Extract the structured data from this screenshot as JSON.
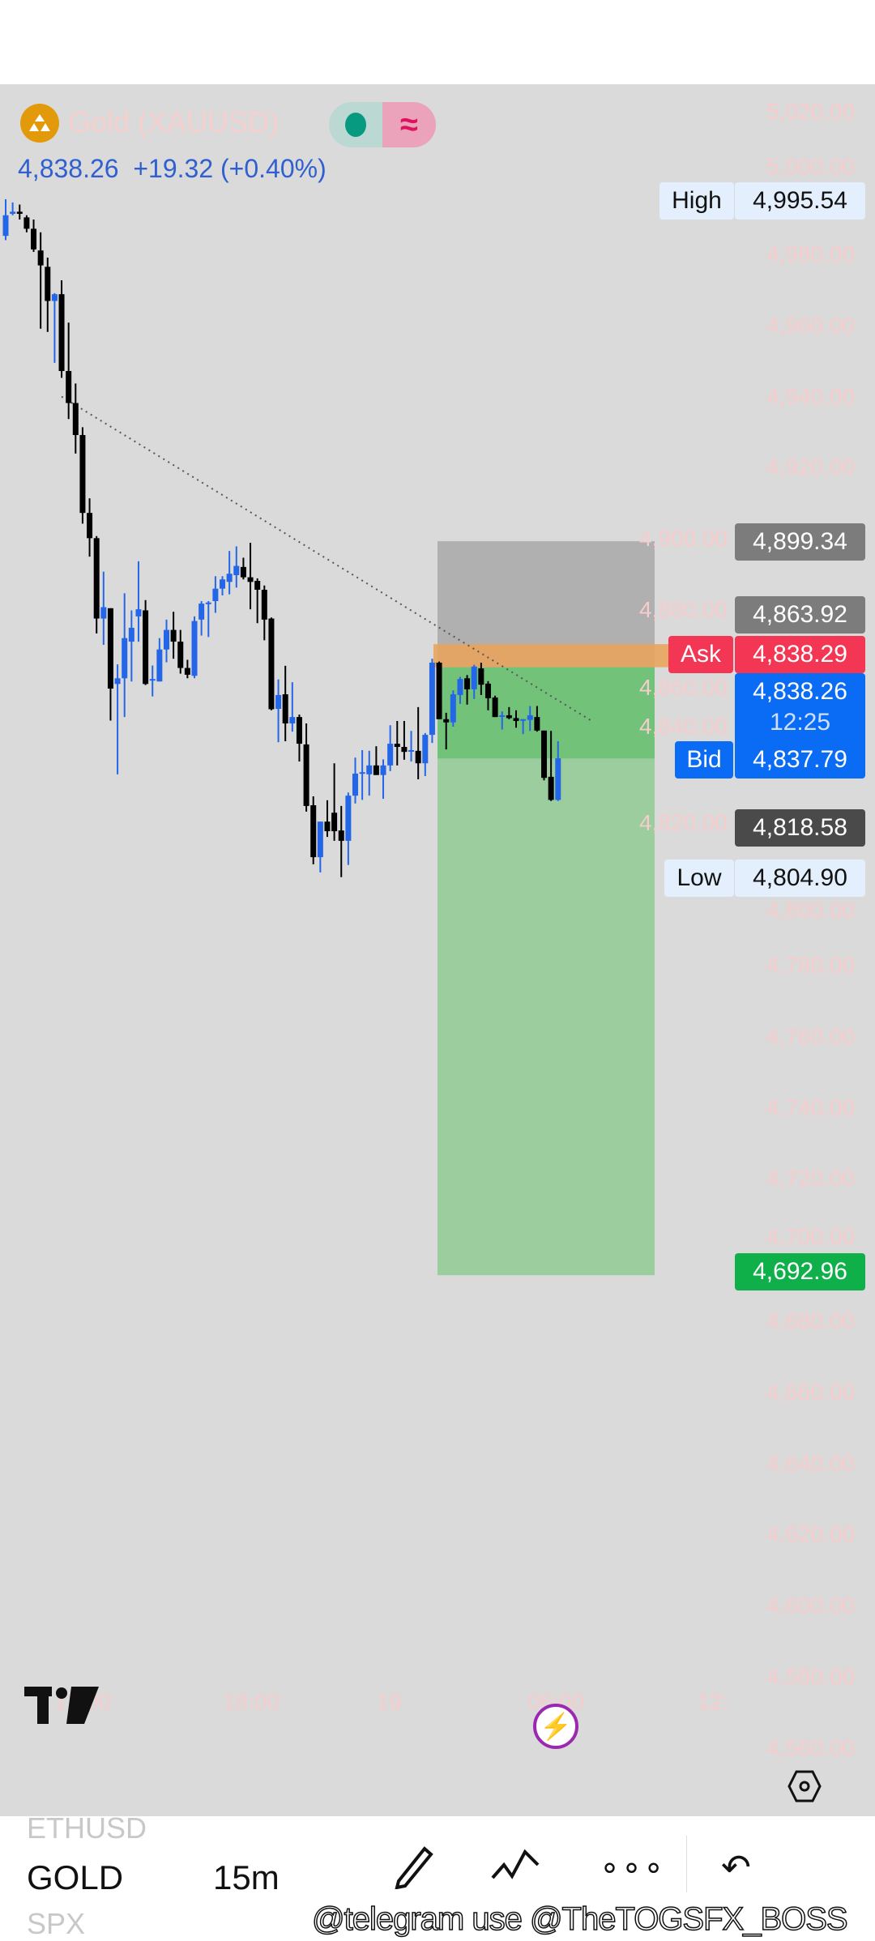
{
  "header": {
    "symbol_title": "Gold (XAUUSD)",
    "last_price": "4,838.26",
    "change": "+19.32 (+0.40%)",
    "market_status_icon": "market-open-dot-icon",
    "wave_icon": "approx-wave-icon",
    "symbol_icon": "gold-bars-icon"
  },
  "price_labels": {
    "high_tag": "High",
    "high": "4,995.54",
    "stop": "4,899.34",
    "entry": "4,863.92",
    "ask_tag": "Ask",
    "ask": "4,838.29",
    "current": "4,838.26",
    "countdown": "12:25",
    "bid_tag": "Bid",
    "bid": "4,837.79",
    "level": "4,818.58",
    "low_tag": "Low",
    "low": "4,804.90",
    "target": "4,692.96"
  },
  "price_axis": [
    "5,020.00",
    "5,000.00",
    "4,980.00",
    "4,960.00",
    "4,940.00",
    "4,920.00",
    "4,900.00",
    "4,880.00",
    "4,860.00",
    "4,840.00",
    "4,820.00",
    "4,800.00",
    "4,780.00",
    "4,760.00",
    "4,740.00",
    "4,720.00",
    "4,700.00",
    "4,680.00",
    "4,660.00",
    "4,640.00",
    "4,620.00",
    "4,600.00",
    "4,580.00",
    "4,560.00"
  ],
  "time_axis": [
    "12:00",
    "18:00",
    "19",
    "06:00",
    "12:"
  ],
  "colors": {
    "up": "#2466e8",
    "down": "#000000",
    "ask": "#f23653",
    "bid": "#0a6cf5",
    "target": "#0fb04a",
    "stop_zone": "#b0b0b0",
    "profit_zone": "#9ccd9e",
    "entry_band": "#e8a45e"
  },
  "toolbar": {
    "symbol_prev": "ETHUSD",
    "symbol": "GOLD",
    "symbol_next": "SPX",
    "interval": "15m",
    "watermark": "@telegram use @TheTOGSFX_BOSS",
    "draw_icon": "pencil-icon",
    "patterns_icon": "pattern-icon",
    "more_icon": "more-icon",
    "undo_icon": "undo-icon"
  },
  "chart_data": {
    "type": "candlestick",
    "symbol": "Gold (XAUUSD)",
    "interval": "15m",
    "ylim": [
      4550,
      5030
    ],
    "candles": [
      [
        4985.2,
        4995.5,
        4984.0,
        4991.0
      ],
      [
        4991.4,
        4994.6,
        4991.0,
        4992.0
      ],
      [
        4992.0,
        4994.0,
        4989.8,
        4991.4
      ],
      [
        4990.4,
        4991.0,
        4986.2,
        4987.2
      ],
      [
        4987.2,
        4989.8,
        4980.7,
        4981.4
      ],
      [
        4981.1,
        4986.2,
        4959.1,
        4976.9
      ],
      [
        4976.5,
        4979.1,
        4958.2,
        4966.9
      ],
      [
        4966.9,
        4969.1,
        4949.5,
        4968.8
      ],
      [
        4968.8,
        4972.7,
        4945.3,
        4947.2
      ],
      [
        4947.2,
        4960.8,
        4933.7,
        4938.2
      ],
      [
        4938.2,
        4943.7,
        4924.0,
        4929.2
      ],
      [
        4929.2,
        4931.4,
        4904.3,
        4907.3
      ],
      [
        4907.3,
        4911.4,
        4895.0,
        4900.2
      ],
      [
        4900.2,
        4900.8,
        4873.4,
        4877.6
      ],
      [
        4877.6,
        4890.8,
        4870.2,
        4880.8
      ],
      [
        4880.5,
        4880.5,
        4848.9,
        4857.9
      ],
      [
        4859.2,
        4864.7,
        4833.8,
        4860.8
      ],
      [
        4860.8,
        4884.7,
        4849.9,
        4872.1
      ],
      [
        4871.1,
        4879.9,
        4859.9,
        4875.0
      ],
      [
        4878.2,
        4893.7,
        4871.1,
        4880.2
      ],
      [
        4879.9,
        4882.8,
        4858.9,
        4859.2
      ],
      [
        4860.2,
        4864.4,
        4855.7,
        4860.6
      ],
      [
        4859.9,
        4872.1,
        4859.9,
        4868.9
      ],
      [
        4868.9,
        4877.3,
        4865.3,
        4874.4
      ],
      [
        4874.4,
        4879.5,
        4866.3,
        4871.1
      ],
      [
        4871.1,
        4874.4,
        4862.1,
        4863.7
      ],
      [
        4863.7,
        4866.0,
        4860.8,
        4861.8
      ],
      [
        4861.5,
        4878.2,
        4860.8,
        4876.9
      ],
      [
        4877.3,
        4882.5,
        4872.8,
        4881.8
      ],
      [
        4881.8,
        4882.5,
        4872.4,
        4882.1
      ],
      [
        4882.5,
        4889.5,
        4879.2,
        4886.0
      ],
      [
        4886.0,
        4889.5,
        4884.1,
        4888.6
      ],
      [
        4887.9,
        4896.6,
        4884.4,
        4890.2
      ],
      [
        4889.8,
        4897.9,
        4886.3,
        4892.4
      ],
      [
        4892.1,
        4894.7,
        4888.6,
        4889.2
      ],
      [
        4889.2,
        4898.9,
        4880.2,
        4887.9
      ],
      [
        4888.2,
        4888.9,
        4876.3,
        4885.7
      ],
      [
        4885.7,
        4886.9,
        4871.5,
        4877.3
      ],
      [
        4877.6,
        4877.9,
        4851.8,
        4852.1
      ],
      [
        4852.2,
        4860.5,
        4842.8,
        4856.1
      ],
      [
        4856.3,
        4864.3,
        4843.1,
        4848.1
      ],
      [
        4848.1,
        4859.7,
        4845.8,
        4849.9
      ],
      [
        4849.9,
        4850.6,
        4837.4,
        4842.4
      ],
      [
        4842.2,
        4848.1,
        4823.3,
        4824.9
      ],
      [
        4825.1,
        4827.6,
        4808.5,
        4810.5
      ],
      [
        4810.5,
        4820.5,
        4806.2,
        4820.5
      ],
      [
        4820.5,
        4826.5,
        4816.2,
        4817.8
      ],
      [
        4823.0,
        4836.9,
        4815.1,
        4817.8
      ],
      [
        4818.0,
        4824.9,
        4804.9,
        4815.1
      ],
      [
        4815.1,
        4828.7,
        4808.3,
        4827.8
      ],
      [
        4827.8,
        4838.5,
        4825.6,
        4834.0
      ],
      [
        4834.2,
        4840.6,
        4826.6,
        4834.4
      ],
      [
        4833.8,
        4840.4,
        4827.8,
        4836.3
      ],
      [
        4836.3,
        4841.7,
        4833.6,
        4833.6
      ],
      [
        4833.6,
        4838.0,
        4826.9,
        4836.3
      ],
      [
        4836.3,
        4847.6,
        4834.7,
        4842.4
      ],
      [
        4842.4,
        4848.8,
        4836.3,
        4841.5
      ],
      [
        4841.5,
        4848.8,
        4837.9,
        4840.1
      ],
      [
        4840.4,
        4846.0,
        4837.4,
        4840.6
      ],
      [
        4840.4,
        4852.7,
        4832.4,
        4836.9
      ],
      [
        4836.9,
        4845.4,
        4833.3,
        4844.9
      ],
      [
        4844.9,
        4866.3,
        4842.6,
        4865.2
      ],
      [
        4865.2,
        4865.5,
        4849.3,
        4849.3
      ],
      [
        4849.3,
        4851.1,
        4840.8,
        4848.4
      ],
      [
        4848.4,
        4857.4,
        4847.2,
        4856.3
      ],
      [
        4856.1,
        4861.2,
        4853.6,
        4860.6
      ],
      [
        4860.8,
        4861.7,
        4853.4,
        4857.7
      ],
      [
        4857.7,
        4864.6,
        4855.0,
        4864.1
      ],
      [
        4863.6,
        4865.2,
        4856.1,
        4859.0
      ],
      [
        4859.3,
        4860.0,
        4851.8,
        4855.2
      ],
      [
        4855.4,
        4855.9,
        4849.9,
        4849.9
      ],
      [
        4850.1,
        4851.5,
        4846.4,
        4850.4
      ],
      [
        4850.4,
        4852.7,
        4849.3,
        4849.6
      ],
      [
        4849.6,
        4851.8,
        4846.9,
        4848.8
      ],
      [
        4849.0,
        4849.3,
        4845.1,
        4849.3
      ],
      [
        4849.1,
        4853.0,
        4846.0,
        4850.4
      ],
      [
        4849.9,
        4853.0,
        4845.8,
        4846.1
      ],
      [
        4846.1,
        4846.1,
        4832.1,
        4832.8
      ],
      [
        4833.1,
        4846.0,
        4826.3,
        4826.6
      ],
      [
        4826.6,
        4843.1,
        4826.3,
        4838.3
      ]
    ],
    "position": {
      "side": "short",
      "stop": 4899.34,
      "entry": 4863.92,
      "target": 4692.96,
      "current": 4838.26
    },
    "entry_band": [
      4863.92,
      4870.4
    ],
    "trendline": {
      "from": 4940.0,
      "to": 4849.0
    }
  }
}
